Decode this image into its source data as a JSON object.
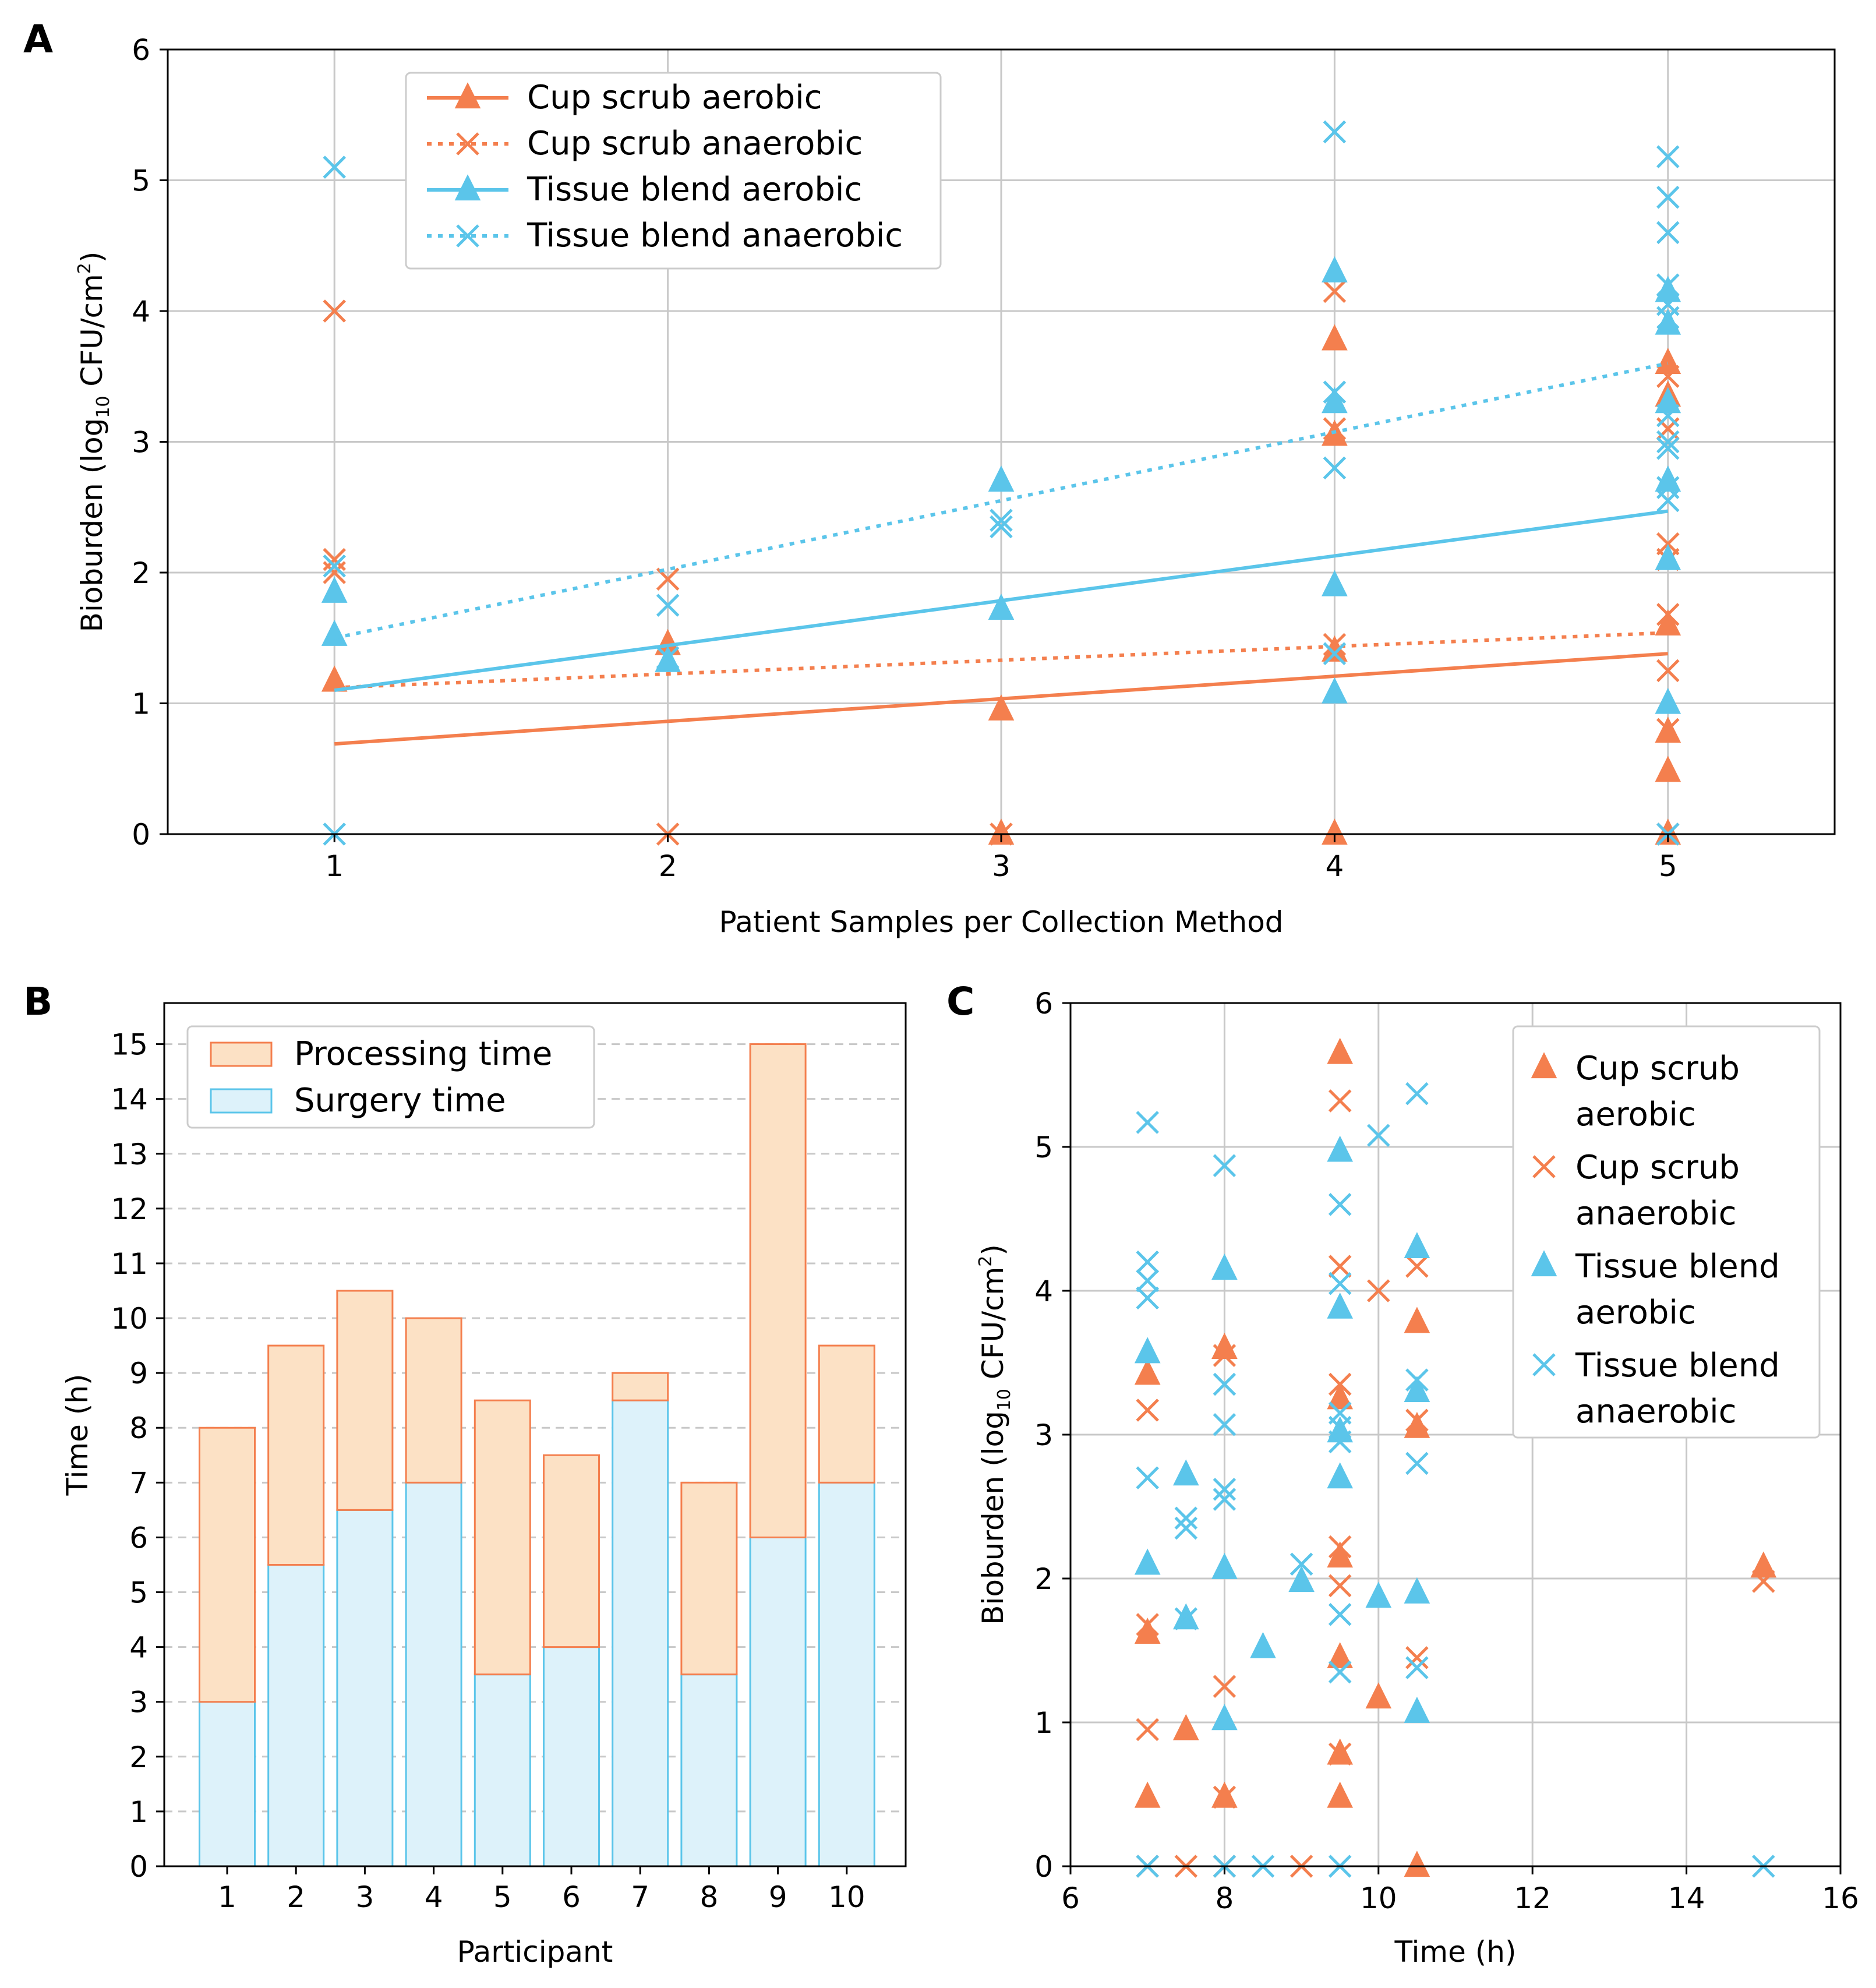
{
  "colors": {
    "orange": "#F47F4E",
    "blue": "#5BC5EA",
    "orange_fill": "#FCE1C5",
    "blue_fill": "#DDF2FA",
    "grid": "#C8C8C8",
    "text": "#000000"
  },
  "chart_data": [
    {
      "panel": "A",
      "type": "scatter",
      "xlabel": "Patient Samples per Collection Method",
      "ylabel": {
        "main": "Bioburden (log",
        "sub": "10",
        "mid": " CFU/cm",
        "sup": "2",
        "end": ")"
      },
      "xlim": [
        0.5,
        5.5
      ],
      "ylim": [
        0,
        6
      ],
      "xticks": [
        1,
        2,
        3,
        4,
        5
      ],
      "yticks": [
        0,
        1,
        2,
        3,
        4,
        5,
        6
      ],
      "grid": true,
      "legend": {
        "position": "upper-left"
      },
      "series": [
        {
          "name": "Cup scrub aerobic",
          "color": "orange",
          "marker": "triangle",
          "line": "solid",
          "fit": [
            [
              1,
              0.69
            ],
            [
              5,
              1.38
            ]
          ],
          "points": [
            [
              1,
              1.17
            ],
            [
              2,
              1.45
            ],
            [
              3,
              0.95
            ],
            [
              3,
              0
            ],
            [
              4,
              3.78
            ],
            [
              4,
              3.05
            ],
            [
              4,
              1.4
            ],
            [
              4,
              0
            ],
            [
              5,
              3.6
            ],
            [
              5,
              3.35
            ],
            [
              5,
              1.6
            ],
            [
              5,
              0.78
            ],
            [
              5,
              0.48
            ],
            [
              5,
              0
            ]
          ]
        },
        {
          "name": "Cup scrub anaerobic",
          "color": "orange",
          "marker": "x",
          "line": "dotted",
          "fit": [
            [
              1,
              1.12
            ],
            [
              5,
              1.54
            ]
          ],
          "points": [
            [
              1,
              4.0
            ],
            [
              1,
              2.1
            ],
            [
              1,
              2.0
            ],
            [
              2,
              1.95
            ],
            [
              2,
              0
            ],
            [
              3,
              0
            ],
            [
              4,
              4.15
            ],
            [
              4,
              3.1
            ],
            [
              4,
              1.45
            ],
            [
              5,
              3.5
            ],
            [
              5,
              3.1
            ],
            [
              5,
              2.22
            ],
            [
              5,
              2.1
            ],
            [
              5,
              1.68
            ],
            [
              5,
              1.25
            ],
            [
              5,
              0.8
            ],
            [
              5,
              0
            ]
          ]
        },
        {
          "name": "Tissue blend aerobic",
          "color": "blue",
          "marker": "triangle",
          "line": "solid",
          "fit": [
            [
              1,
              1.1
            ],
            [
              5,
              2.47
            ]
          ],
          "points": [
            [
              1,
              1.85
            ],
            [
              1,
              1.52
            ],
            [
              2,
              1.32
            ],
            [
              3,
              2.7
            ],
            [
              3,
              1.72
            ],
            [
              4,
              4.3
            ],
            [
              4,
              3.3
            ],
            [
              4,
              1.9
            ],
            [
              4,
              1.08
            ],
            [
              5,
              4.15
            ],
            [
              5,
              3.9
            ],
            [
              5,
              3.3
            ],
            [
              5,
              2.7
            ],
            [
              5,
              2.1
            ],
            [
              5,
              1.0
            ]
          ]
        },
        {
          "name": "Tissue blend anaerobic",
          "color": "blue",
          "marker": "x",
          "line": "dotted",
          "fit": [
            [
              1,
              1.5
            ],
            [
              5,
              3.6
            ]
          ],
          "points": [
            [
              1,
              5.1
            ],
            [
              1,
              2.05
            ],
            [
              1,
              0
            ],
            [
              2,
              1.75
            ],
            [
              2,
              1.35
            ],
            [
              3,
              2.4
            ],
            [
              3,
              2.35
            ],
            [
              4,
              5.37
            ],
            [
              4,
              3.38
            ],
            [
              4,
              2.8
            ],
            [
              4,
              1.38
            ],
            [
              5,
              5.18
            ],
            [
              5,
              4.87
            ],
            [
              5,
              4.6
            ],
            [
              5,
              4.2
            ],
            [
              5,
              4.05
            ],
            [
              5,
              3.95
            ],
            [
              5,
              3.2
            ],
            [
              5,
              3.0
            ],
            [
              5,
              2.95
            ],
            [
              5,
              2.65
            ],
            [
              5,
              2.55
            ],
            [
              5,
              0
            ]
          ]
        }
      ]
    },
    {
      "panel": "B",
      "type": "bar",
      "xlabel": "Participant",
      "ylabel": "Time (h)",
      "ylim": [
        0,
        15.75
      ],
      "yticks": [
        0,
        1,
        2,
        3,
        4,
        5,
        6,
        7,
        8,
        9,
        10,
        11,
        12,
        13,
        14,
        15
      ],
      "grid": "y-dashed",
      "categories": [
        "1",
        "2",
        "3",
        "4",
        "5",
        "6",
        "7",
        "8",
        "9",
        "10"
      ],
      "series": [
        {
          "name": "Surgery time",
          "color": "blue",
          "fill": "blue_fill",
          "values": [
            3,
            5.5,
            6.5,
            7,
            3.5,
            4,
            8.5,
            3.5,
            6,
            7
          ]
        },
        {
          "name": "Processing time",
          "color": "orange",
          "fill": "orange_fill",
          "values": [
            5,
            4,
            4,
            3,
            5,
            3.5,
            0.5,
            3.5,
            9,
            2.5
          ]
        }
      ],
      "legend": {
        "position": "upper-left",
        "order": [
          "Processing time",
          "Surgery time"
        ]
      }
    },
    {
      "panel": "C",
      "type": "scatter",
      "xlabel": "Time (h)",
      "ylabel": {
        "main": "Bioburden (log",
        "sub": "10",
        "mid": " CFU/cm",
        "sup": "2",
        "end": ")"
      },
      "xlim": [
        6,
        16
      ],
      "ylim": [
        0,
        6
      ],
      "xticks": [
        6,
        8,
        10,
        12,
        14,
        16
      ],
      "yticks": [
        0,
        1,
        2,
        3,
        4,
        5,
        6
      ],
      "grid": true,
      "legend": {
        "position": "upper-right",
        "entries": [
          [
            "Cup scrub",
            "aerobic"
          ],
          [
            "Cup scrub",
            "anaerobic"
          ],
          [
            "Tissue blend",
            "aerobic"
          ],
          [
            "Tissue blend",
            "anaerobic"
          ]
        ]
      },
      "series": [
        {
          "name": "Cup scrub aerobic",
          "color": "orange",
          "marker": "triangle",
          "points": [
            [
              7,
              3.42
            ],
            [
              7,
              1.62
            ],
            [
              7,
              0.48
            ],
            [
              7.5,
              0.95
            ],
            [
              8,
              3.6
            ],
            [
              8,
              0.48
            ],
            [
              9.5,
              5.65
            ],
            [
              9.5,
              3.25
            ],
            [
              9.5,
              2.15
            ],
            [
              9.5,
              1.45
            ],
            [
              9.5,
              0.78
            ],
            [
              9.5,
              0.48
            ],
            [
              10,
              1.17
            ],
            [
              10.5,
              3.78
            ],
            [
              10.5,
              3.05
            ],
            [
              10.5,
              0
            ],
            [
              15,
              2.08
            ]
          ]
        },
        {
          "name": "Cup scrub anaerobic",
          "color": "orange",
          "marker": "x",
          "points": [
            [
              7,
              3.17
            ],
            [
              7,
              1.68
            ],
            [
              7,
              0.95
            ],
            [
              7,
              0
            ],
            [
              7.5,
              0
            ],
            [
              8,
              3.55
            ],
            [
              8,
              1.25
            ],
            [
              8,
              0.48
            ],
            [
              8,
              0
            ],
            [
              9,
              0
            ],
            [
              9.5,
              5.32
            ],
            [
              9.5,
              4.17
            ],
            [
              9.5,
              3.35
            ],
            [
              9.5,
              2.22
            ],
            [
              9.5,
              1.95
            ],
            [
              9.5,
              0.78
            ],
            [
              10,
              4.0
            ],
            [
              10.5,
              4.17
            ],
            [
              10.5,
              3.1
            ],
            [
              10.5,
              1.45
            ],
            [
              15,
              1.98
            ]
          ]
        },
        {
          "name": "Tissue blend aerobic",
          "color": "blue",
          "marker": "triangle",
          "points": [
            [
              7,
              3.57
            ],
            [
              7,
              2.1
            ],
            [
              7.5,
              2.72
            ],
            [
              7.5,
              1.72
            ],
            [
              8,
              4.15
            ],
            [
              8,
              2.07
            ],
            [
              8,
              1.02
            ],
            [
              8.5,
              1.52
            ],
            [
              9,
              1.98
            ],
            [
              9.5,
              4.97
            ],
            [
              9.5,
              3.88
            ],
            [
              9.5,
              3.02
            ],
            [
              9.5,
              2.7
            ],
            [
              10,
              1.87
            ],
            [
              10.5,
              4.3
            ],
            [
              10.5,
              3.3
            ],
            [
              10.5,
              1.9
            ],
            [
              10.5,
              1.07
            ]
          ]
        },
        {
          "name": "Tissue blend anaerobic",
          "color": "blue",
          "marker": "x",
          "points": [
            [
              7,
              5.17
            ],
            [
              7,
              4.2
            ],
            [
              7,
              4.07
            ],
            [
              7,
              3.95
            ],
            [
              7,
              2.7
            ],
            [
              7,
              0
            ],
            [
              7.5,
              2.42
            ],
            [
              7.5,
              2.35
            ],
            [
              7.5,
              1.72
            ],
            [
              8,
              4.87
            ],
            [
              8,
              3.35
            ],
            [
              8,
              3.07
            ],
            [
              8,
              2.62
            ],
            [
              8,
              2.55
            ],
            [
              8,
              0
            ],
            [
              8.5,
              0
            ],
            [
              9,
              2.1
            ],
            [
              9.5,
              4.6
            ],
            [
              9.5,
              4.05
            ],
            [
              9.5,
              3.15
            ],
            [
              9.5,
              3.05
            ],
            [
              9.5,
              2.95
            ],
            [
              9.5,
              1.75
            ],
            [
              9.5,
              1.35
            ],
            [
              9.5,
              0
            ],
            [
              10,
              5.08
            ],
            [
              10.5,
              5.37
            ],
            [
              10.5,
              3.38
            ],
            [
              10.5,
              2.8
            ],
            [
              10.5,
              1.38
            ],
            [
              15,
              0
            ]
          ]
        }
      ]
    }
  ]
}
